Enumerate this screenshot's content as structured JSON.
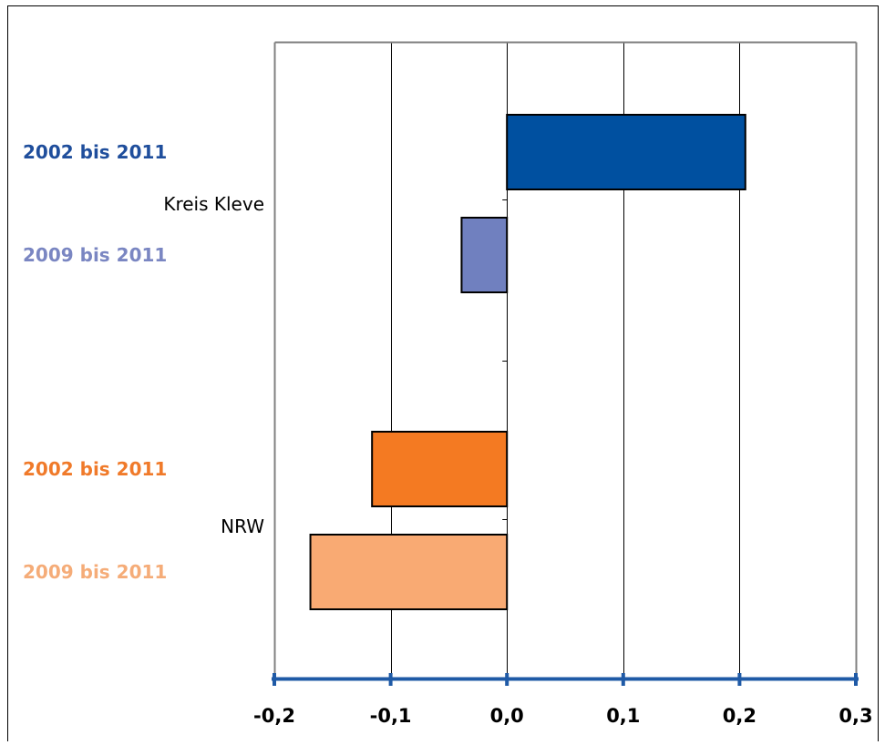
{
  "chart_data": {
    "type": "bar",
    "orientation": "horizontal",
    "title": "",
    "xlabel": "",
    "ylabel": "",
    "xlim": [
      -0.2,
      0.3
    ],
    "x_ticks": [
      -0.2,
      -0.1,
      0.0,
      0.1,
      0.2,
      0.3
    ],
    "x_tick_labels": [
      "-0,2",
      "-0,1",
      "0,0",
      "0,1",
      "0,2",
      "0,3"
    ],
    "grid": true,
    "legend": "none",
    "groups": [
      {
        "label": "Kreis Kleve",
        "bars": [
          {
            "label": "2002 bis 2011",
            "value": 0.205,
            "color": "#0050A0",
            "label_color": "#1F4E9C"
          },
          {
            "label": "2009 bis 2011",
            "value": -0.039,
            "color": "#7080BF",
            "label_color": "#7A86C2"
          }
        ]
      },
      {
        "label": "NRW",
        "bars": [
          {
            "label": "2002 bis 2011",
            "value": -0.116,
            "color": "#F47A22",
            "label_color": "#F07A2A"
          },
          {
            "label": "2009 bis 2011",
            "value": -0.169,
            "color": "#F9AA73",
            "label_color": "#F5AC78"
          }
        ]
      }
    ],
    "colors": {
      "axis": "#1F5AA6",
      "grid": "#000000",
      "plot_border": "#808080",
      "bar_outline": "#000000"
    }
  }
}
